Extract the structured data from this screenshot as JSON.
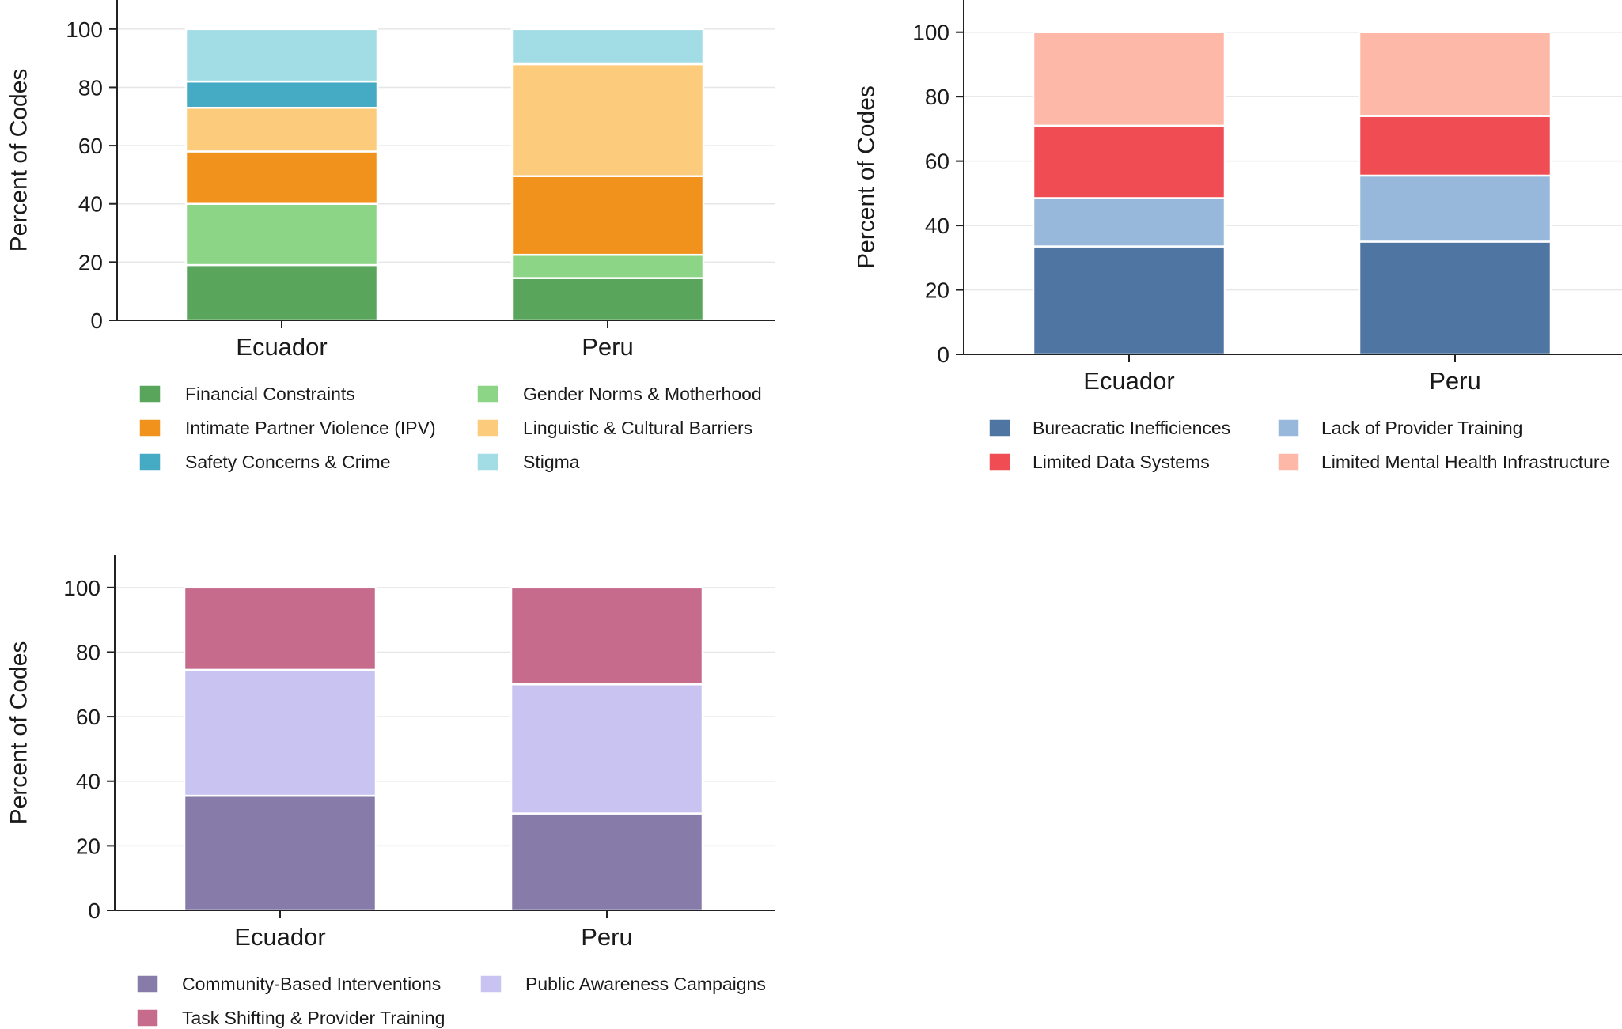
{
  "chart_data": [
    {
      "type": "bar",
      "stacked": true,
      "categories": [
        "Ecuador",
        "Peru"
      ],
      "ylabel": "Percent of Codes",
      "ylim": [
        0,
        110
      ],
      "yticks": [
        0,
        20,
        40,
        60,
        80,
        100
      ],
      "grid": true,
      "legend_position": "bottom",
      "series": [
        {
          "name": "Financial Constraints",
          "color": "#59a55b",
          "values": [
            19,
            14.5
          ]
        },
        {
          "name": "Gender Norms & Motherhood",
          "color": "#8dd586",
          "values": [
            21,
            8
          ]
        },
        {
          "name": "Intimate Partner Violence (IPV)",
          "color": "#f0921b",
          "values": [
            18,
            27
          ]
        },
        {
          "name": "Linguistic & Cultural Barriers",
          "color": "#fccb7b",
          "values": [
            15,
            38.5
          ]
        },
        {
          "name": "Safety Concerns & Crime",
          "color": "#45aac3",
          "values": [
            9,
            0
          ]
        },
        {
          "name": "Stigma",
          "color": "#a2dde6",
          "values": [
            18,
            12
          ]
        }
      ]
    },
    {
      "type": "bar",
      "stacked": true,
      "categories": [
        "Ecuador",
        "Peru"
      ],
      "ylabel": "Percent of Codes",
      "ylim": [
        0,
        110
      ],
      "yticks": [
        0,
        20,
        40,
        60,
        80,
        100
      ],
      "grid": true,
      "legend_position": "bottom",
      "series": [
        {
          "name": "Bureacratic Inefficiences",
          "color": "#4f76a2",
          "values": [
            33.5,
            35
          ]
        },
        {
          "name": "Lack of Provider Training",
          "color": "#97b8db",
          "values": [
            15,
            20.5
          ]
        },
        {
          "name": "Limited Data Systems",
          "color": "#ef4c53",
          "values": [
            22.5,
            18.5
          ]
        },
        {
          "name": "Limited Mental Health Infrastructure",
          "color": "#feb8a8",
          "values": [
            29,
            26
          ]
        }
      ]
    },
    {
      "type": "bar",
      "stacked": true,
      "categories": [
        "Ecuador",
        "Peru"
      ],
      "ylabel": "Percent of Codes",
      "ylim": [
        0,
        110
      ],
      "yticks": [
        0,
        20,
        40,
        60,
        80,
        100
      ],
      "grid": true,
      "legend_position": "bottom",
      "series": [
        {
          "name": "Community-Based Interventions",
          "color": "#877baa",
          "values": [
            35.5,
            30
          ]
        },
        {
          "name": "Public Awareness Campaigns",
          "color": "#c9c3f1",
          "values": [
            39,
            40
          ]
        },
        {
          "name": "Task Shifting & Provider Training",
          "color": "#c76b8c",
          "values": [
            25.5,
            30
          ]
        }
      ]
    }
  ]
}
